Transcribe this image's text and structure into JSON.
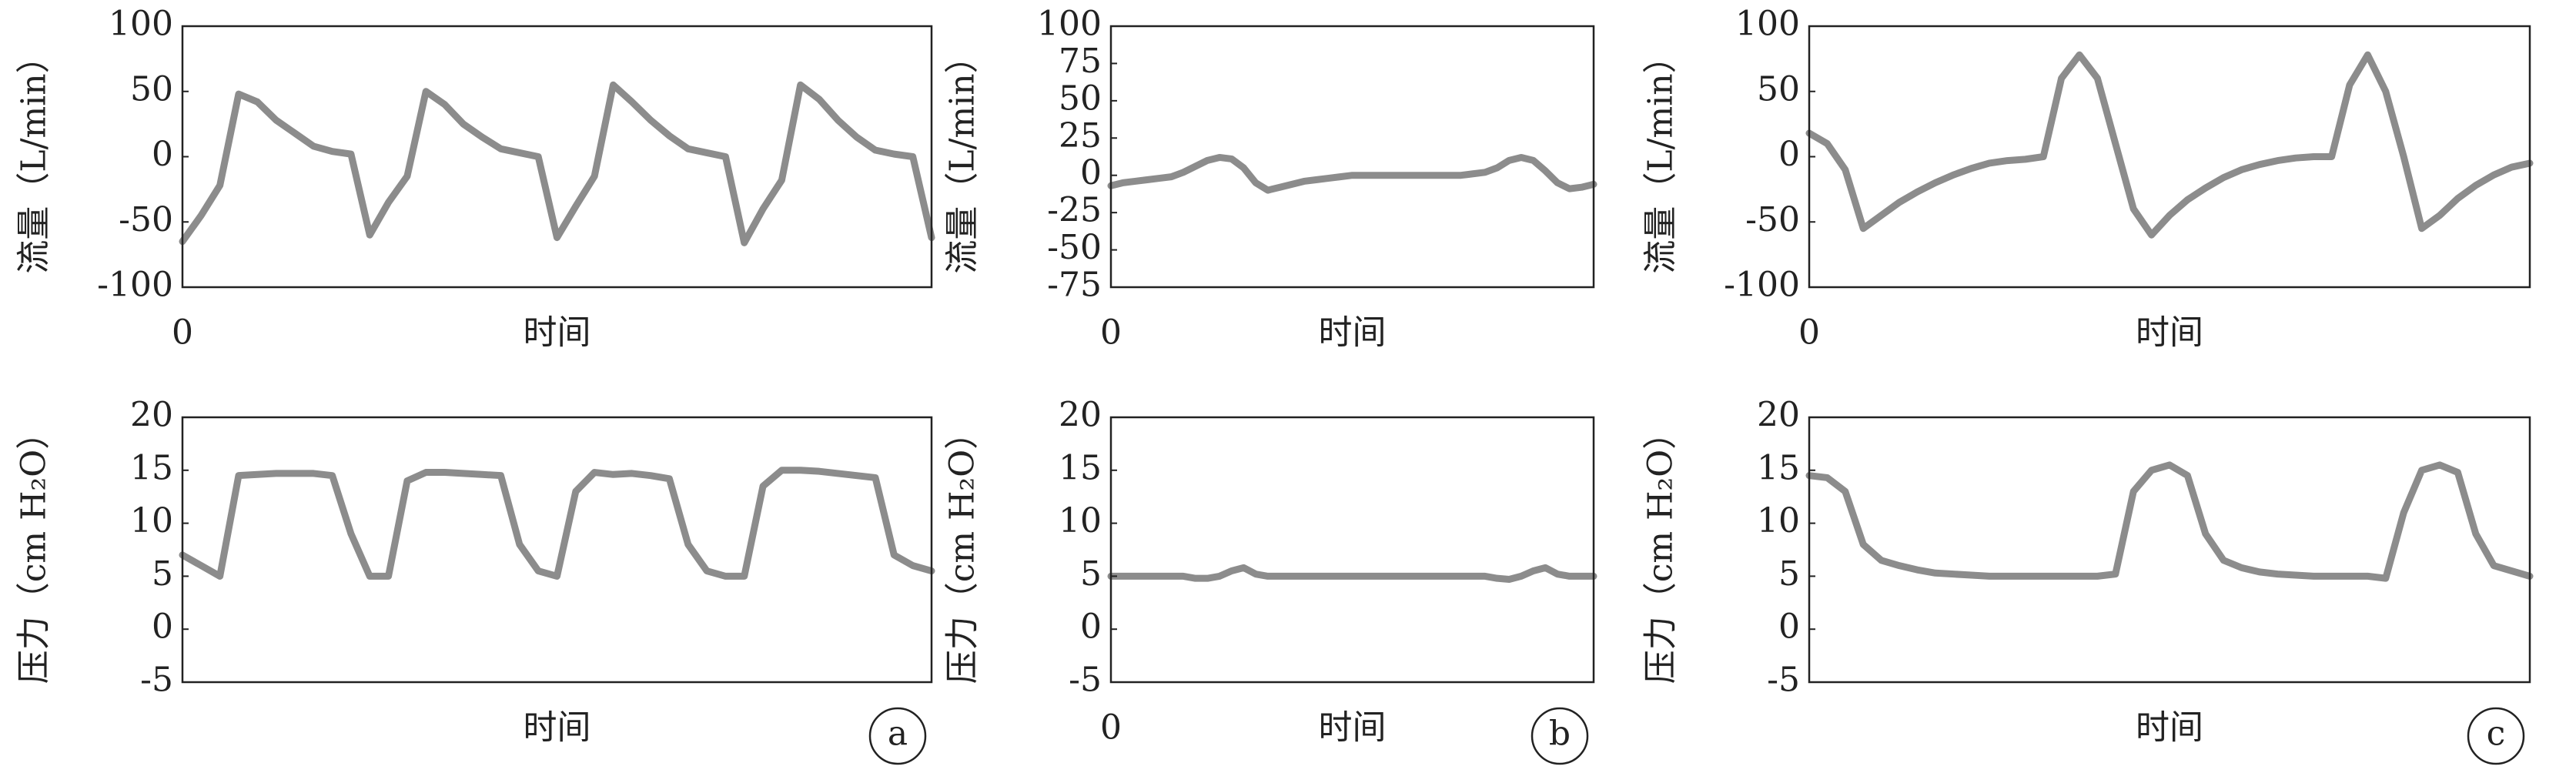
{
  "chart_data": [
    {
      "type": "line",
      "ylabel": "流量（L/min）",
      "xlabel": "时间",
      "color": "#8c8c8c",
      "x": [
        0,
        1,
        2,
        3,
        4,
        5,
        6,
        7,
        8,
        9,
        10,
        11,
        12,
        13,
        14,
        15,
        16,
        17,
        18,
        19,
        20,
        21,
        22,
        23,
        24,
        25,
        26,
        27,
        28,
        29,
        30,
        31,
        32,
        33,
        34,
        35,
        36,
        37,
        38,
        39,
        40
      ],
      "values": [
        -65,
        -45,
        -22,
        48,
        42,
        28,
        18,
        8,
        4,
        2,
        -60,
        -35,
        -15,
        50,
        40,
        25,
        15,
        6,
        3,
        0,
        -62,
        -38,
        -15,
        55,
        42,
        28,
        16,
        6,
        3,
        0,
        -66,
        -40,
        -18,
        55,
        44,
        28,
        15,
        5,
        2,
        0,
        -62
      ],
      "xlim": [
        0,
        40
      ],
      "xticks": [
        0
      ],
      "ylim": [
        -100,
        100
      ],
      "yticks": [
        -100,
        -50,
        0,
        50,
        100
      ]
    },
    {
      "type": "line",
      "ylabel": "流量（L/min）",
      "xlabel": "时间",
      "color": "#8c8c8c",
      "x": [
        0,
        1,
        2,
        3,
        4,
        5,
        6,
        7,
        8,
        9,
        10,
        11,
        12,
        13,
        14,
        15,
        16,
        17,
        18,
        19,
        20,
        21,
        22,
        23,
        24,
        25,
        26,
        27,
        28,
        29,
        30,
        31,
        32,
        33,
        34,
        35,
        36,
        37,
        38,
        39,
        40
      ],
      "values": [
        -7,
        -5,
        -4,
        -3,
        -2,
        -1,
        2,
        6,
        10,
        12,
        11,
        5,
        -5,
        -10,
        -8,
        -6,
        -4,
        -3,
        -2,
        -1,
        0,
        0,
        0,
        0,
        0,
        0,
        0,
        0,
        0,
        0,
        1,
        2,
        5,
        10,
        12,
        10,
        3,
        -5,
        -9,
        -8,
        -6
      ],
      "xlim": [
        0,
        40
      ],
      "xticks": [
        0
      ],
      "ylim": [
        -75,
        100
      ],
      "yticks": [
        -75,
        -50,
        -25,
        0,
        25,
        50,
        75,
        100
      ]
    },
    {
      "type": "line",
      "ylabel": "流量（L/min）",
      "xlabel": "时间",
      "color": "#8c8c8c",
      "x": [
        0,
        1,
        2,
        3,
        4,
        5,
        6,
        7,
        8,
        9,
        10,
        11,
        12,
        13,
        14,
        15,
        16,
        17,
        18,
        19,
        20,
        21,
        22,
        23,
        24,
        25,
        26,
        27,
        28,
        29,
        30,
        31,
        32,
        33,
        34,
        35,
        36,
        37,
        38,
        39,
        40
      ],
      "values": [
        18,
        10,
        -10,
        -55,
        -45,
        -35,
        -27,
        -20,
        -14,
        -9,
        -5,
        -3,
        -2,
        0,
        60,
        78,
        60,
        10,
        -40,
        -60,
        -45,
        -33,
        -24,
        -16,
        -10,
        -6,
        -3,
        -1,
        0,
        0,
        55,
        78,
        50,
        0,
        -55,
        -45,
        -32,
        -22,
        -14,
        -8,
        -5
      ],
      "xlim": [
        0,
        40
      ],
      "xticks": [
        0
      ],
      "ylim": [
        -100,
        100
      ],
      "yticks": [
        -100,
        -50,
        0,
        50,
        100
      ]
    },
    {
      "type": "line",
      "ylabel": "压力（cm H₂O）",
      "xlabel": "时间",
      "panel_label": "a",
      "color": "#8c8c8c",
      "x": [
        0,
        1,
        2,
        3,
        4,
        5,
        6,
        7,
        8,
        9,
        10,
        11,
        12,
        13,
        14,
        15,
        16,
        17,
        18,
        19,
        20,
        21,
        22,
        23,
        24,
        25,
        26,
        27,
        28,
        29,
        30,
        31,
        32,
        33,
        34,
        35,
        36,
        37,
        38,
        39,
        40
      ],
      "values": [
        7,
        6,
        5,
        14.5,
        14.6,
        14.7,
        14.7,
        14.7,
        14.5,
        9,
        5,
        5,
        14,
        14.8,
        14.8,
        14.7,
        14.6,
        14.5,
        8,
        5.5,
        5,
        13,
        14.8,
        14.6,
        14.7,
        14.5,
        14.2,
        8,
        5.5,
        5,
        5,
        13.5,
        15,
        15,
        14.9,
        14.7,
        14.5,
        14.3,
        7,
        6,
        5.5
      ],
      "xlim": [
        0,
        40
      ],
      "ylim": [
        -5,
        20
      ],
      "yticks": [
        -5,
        0,
        5,
        10,
        15,
        20
      ]
    },
    {
      "type": "line",
      "ylabel": "压力（cm H₂O）",
      "xlabel": "时间",
      "panel_label": "b",
      "color": "#8c8c8c",
      "x": [
        0,
        1,
        2,
        3,
        4,
        5,
        6,
        7,
        8,
        9,
        10,
        11,
        12,
        13,
        14,
        15,
        16,
        17,
        18,
        19,
        20,
        21,
        22,
        23,
        24,
        25,
        26,
        27,
        28,
        29,
        30,
        31,
        32,
        33,
        34,
        35,
        36,
        37,
        38,
        39,
        40
      ],
      "values": [
        5,
        5,
        5,
        5,
        5,
        5,
        5,
        4.8,
        4.8,
        5,
        5.5,
        5.8,
        5.2,
        5,
        5,
        5,
        5,
        5,
        5,
        5,
        5,
        5,
        5,
        5,
        5,
        5,
        5,
        5,
        5,
        5,
        5,
        5,
        4.8,
        4.7,
        5,
        5.5,
        5.8,
        5.2,
        5,
        5,
        5
      ],
      "xlim": [
        0,
        40
      ],
      "xticks": [
        0
      ],
      "ylim": [
        -5,
        20
      ],
      "yticks": [
        -5,
        0,
        5,
        10,
        15,
        20
      ]
    },
    {
      "type": "line",
      "ylabel": "压力（cm H₂O）",
      "xlabel": "时间",
      "panel_label": "c",
      "color": "#8c8c8c",
      "x": [
        0,
        1,
        2,
        3,
        4,
        5,
        6,
        7,
        8,
        9,
        10,
        11,
        12,
        13,
        14,
        15,
        16,
        17,
        18,
        19,
        20,
        21,
        22,
        23,
        24,
        25,
        26,
        27,
        28,
        29,
        30,
        31,
        32,
        33,
        34,
        35,
        36,
        37,
        38,
        39,
        40
      ],
      "values": [
        14.5,
        14.3,
        13,
        8,
        6.5,
        6,
        5.6,
        5.3,
        5.2,
        5.1,
        5,
        5,
        5,
        5,
        5,
        5,
        5,
        5.2,
        13,
        15,
        15.5,
        14.5,
        9,
        6.5,
        5.8,
        5.4,
        5.2,
        5.1,
        5,
        5,
        5,
        5,
        4.8,
        11,
        15,
        15.5,
        14.8,
        9,
        6,
        5.5,
        5
      ],
      "xlim": [
        0,
        40
      ],
      "ylim": [
        -5,
        20
      ],
      "yticks": [
        -5,
        0,
        5,
        10,
        15,
        20
      ]
    }
  ]
}
